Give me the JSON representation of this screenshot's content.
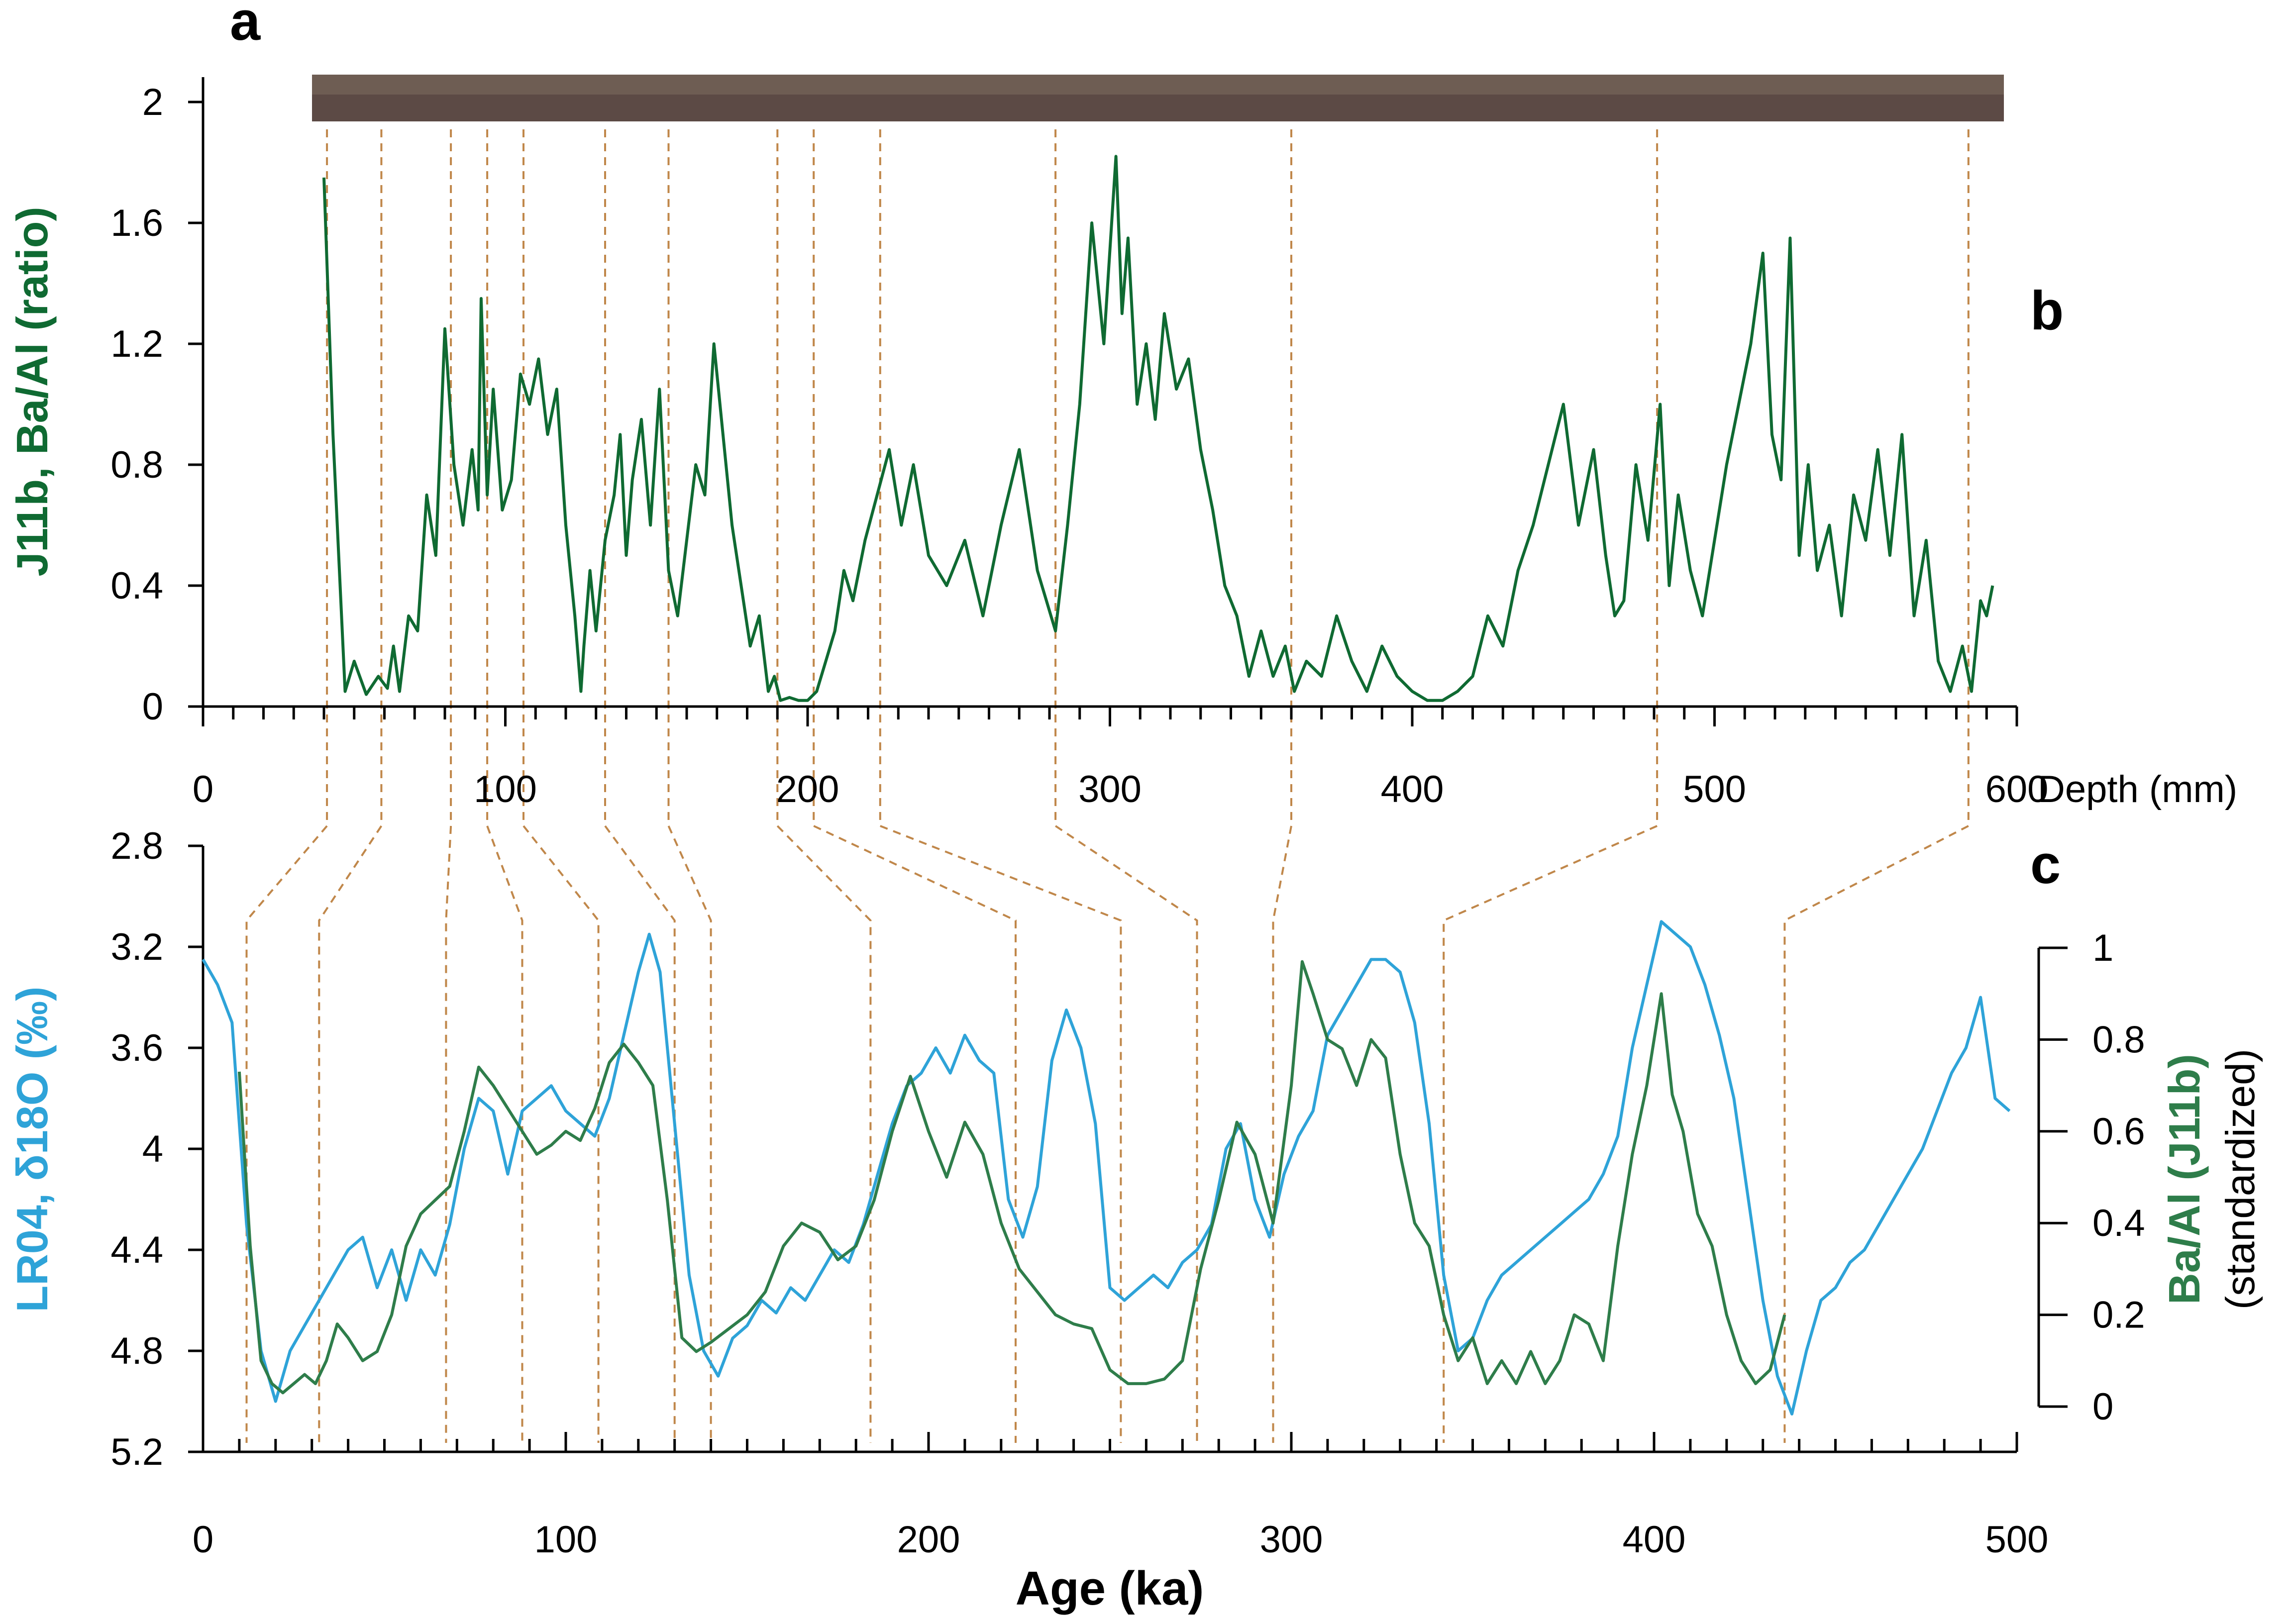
{
  "panel_labels": {
    "a": "a",
    "b": "b",
    "c": "c"
  },
  "colors": {
    "ba": "#0f6a32",
    "ba_c": "#2e7d4a",
    "lr04": "#2ea3d8",
    "tie": "#c0874a",
    "core_strip": "#5c4a45"
  },
  "chart_data": [
    {
      "id": "panel-b",
      "type": "line",
      "title": "",
      "xlabel": "Depth (mm)",
      "ylabel": "J11b, Ba/Al (ratio)",
      "xlim": [
        0,
        600
      ],
      "ylim": [
        0,
        2
      ],
      "xticks": [
        "0",
        "100",
        "200",
        "300",
        "400",
        "500",
        "600"
      ],
      "yticks": [
        "0",
        "0.4",
        "0.8",
        "1.2",
        "1.6",
        "2"
      ],
      "series": [
        {
          "x": [
            40,
            43,
            47,
            50,
            54,
            58,
            61,
            63,
            65,
            68,
            71,
            74,
            77,
            80,
            83,
            86,
            89,
            91,
            92,
            94,
            96,
            99,
            102,
            105,
            108,
            111,
            114,
            117,
            120,
            123,
            125,
            126,
            128,
            130,
            133,
            136,
            138,
            140,
            142,
            145,
            148,
            151,
            154,
            157,
            160,
            163,
            166,
            169,
            172,
            175,
            178,
            181,
            184,
            187,
            189,
            191,
            194,
            197,
            200,
            203,
            206,
            209,
            212,
            215,
            219,
            223,
            227,
            231,
            235,
            240,
            246,
            252,
            258,
            264,
            270,
            276,
            282,
            286,
            290,
            294,
            298,
            302,
            304,
            306,
            309,
            312,
            315,
            318,
            322,
            326,
            330,
            334,
            338,
            342,
            346,
            350,
            354,
            358,
            361,
            365,
            370,
            375,
            380,
            385,
            390,
            395,
            400,
            405,
            410,
            415,
            420,
            425,
            430,
            435,
            440,
            445,
            450,
            455,
            460,
            464,
            467,
            470,
            474,
            478,
            482,
            485,
            488,
            492,
            496,
            500,
            504,
            508,
            512,
            516,
            519,
            522,
            525,
            528,
            531,
            534,
            538,
            542,
            546,
            550,
            554,
            558,
            562,
            566,
            570,
            574,
            578,
            582,
            585,
            588,
            590,
            592
          ],
          "y": [
            1.75,
            0.9,
            0.05,
            0.15,
            0.04,
            0.1,
            0.06,
            0.2,
            0.05,
            0.3,
            0.25,
            0.7,
            0.5,
            1.25,
            0.8,
            0.6,
            0.85,
            0.65,
            1.35,
            0.7,
            1.05,
            0.65,
            0.75,
            1.1,
            1.0,
            1.15,
            0.9,
            1.05,
            0.6,
            0.3,
            0.05,
            0.2,
            0.45,
            0.25,
            0.55,
            0.7,
            0.9,
            0.5,
            0.75,
            0.95,
            0.6,
            1.05,
            0.45,
            0.3,
            0.55,
            0.8,
            0.7,
            1.2,
            0.9,
            0.6,
            0.4,
            0.2,
            0.3,
            0.05,
            0.1,
            0.02,
            0.03,
            0.02,
            0.02,
            0.05,
            0.15,
            0.25,
            0.45,
            0.35,
            0.55,
            0.7,
            0.85,
            0.6,
            0.8,
            0.5,
            0.4,
            0.55,
            0.3,
            0.6,
            0.85,
            0.45,
            0.25,
            0.6,
            1.0,
            1.6,
            1.2,
            1.82,
            1.3,
            1.55,
            1.0,
            1.2,
            0.95,
            1.3,
            1.05,
            1.15,
            0.85,
            0.65,
            0.4,
            0.3,
            0.1,
            0.25,
            0.1,
            0.2,
            0.05,
            0.15,
            0.1,
            0.3,
            0.15,
            0.05,
            0.2,
            0.1,
            0.05,
            0.02,
            0.02,
            0.05,
            0.1,
            0.3,
            0.2,
            0.45,
            0.6,
            0.8,
            1.0,
            0.6,
            0.85,
            0.5,
            0.3,
            0.35,
            0.8,
            0.55,
            1.0,
            0.4,
            0.7,
            0.45,
            0.3,
            0.55,
            0.8,
            1.0,
            1.2,
            1.5,
            0.9,
            0.75,
            1.55,
            0.5,
            0.8,
            0.45,
            0.6,
            0.3,
            0.7,
            0.55,
            0.85,
            0.5,
            0.9,
            0.3,
            0.55,
            0.15,
            0.05,
            0.2,
            0.05,
            0.35,
            0.3,
            0.4
          ]
        }
      ]
    },
    {
      "id": "panel-c",
      "type": "line",
      "title": "",
      "xlabel": "Age (ka)",
      "ylabel": "LR04, δ18O (‰)",
      "y2label": "Ba/Al (J11b)",
      "y2sub": "(standardized)",
      "xlim": [
        0,
        500
      ],
      "ylim": [
        5.2,
        2.8
      ],
      "y2lim": [
        0,
        1
      ],
      "xticks": [
        "0",
        "100",
        "200",
        "300",
        "400",
        "500"
      ],
      "yticks": [
        "2.8",
        "3.2",
        "3.6",
        "4",
        "4.4",
        "4.8",
        "5.2"
      ],
      "y2ticks": [
        "0",
        "0.2",
        "0.4",
        "0.6",
        "0.8",
        "1"
      ],
      "series": [
        {
          "name": "LR04",
          "axis": "left",
          "x": [
            0,
            4,
            8,
            12,
            16,
            20,
            24,
            28,
            32,
            36,
            40,
            44,
            48,
            52,
            56,
            60,
            64,
            68,
            72,
            76,
            80,
            84,
            88,
            92,
            96,
            100,
            104,
            108,
            112,
            116,
            120,
            123,
            126,
            130,
            134,
            138,
            142,
            146,
            150,
            154,
            158,
            162,
            166,
            170,
            174,
            178,
            182,
            186,
            190,
            194,
            198,
            202,
            206,
            210,
            214,
            218,
            222,
            226,
            230,
            234,
            238,
            242,
            246,
            250,
            254,
            258,
            262,
            266,
            270,
            274,
            278,
            282,
            286,
            290,
            294,
            298,
            302,
            306,
            310,
            314,
            318,
            322,
            326,
            330,
            334,
            338,
            342,
            346,
            350,
            354,
            358,
            362,
            366,
            370,
            374,
            378,
            382,
            386,
            390,
            394,
            398,
            402,
            406,
            410,
            414,
            418,
            422,
            426,
            430,
            434,
            438,
            442,
            446,
            450,
            454,
            458,
            462,
            466,
            470,
            474,
            478,
            482,
            486,
            490,
            494,
            498
          ],
          "y": [
            3.25,
            3.35,
            3.5,
            4.3,
            4.8,
            5.0,
            4.8,
            4.7,
            4.6,
            4.5,
            4.4,
            4.35,
            4.55,
            4.4,
            4.6,
            4.4,
            4.5,
            4.3,
            4.0,
            3.8,
            3.85,
            4.1,
            3.85,
            3.8,
            3.75,
            3.85,
            3.9,
            3.95,
            3.8,
            3.55,
            3.3,
            3.15,
            3.3,
            3.9,
            4.5,
            4.8,
            4.9,
            4.75,
            4.7,
            4.6,
            4.65,
            4.55,
            4.6,
            4.5,
            4.4,
            4.45,
            4.3,
            4.1,
            3.9,
            3.75,
            3.7,
            3.6,
            3.7,
            3.55,
            3.65,
            3.7,
            4.2,
            4.35,
            4.15,
            3.65,
            3.45,
            3.6,
            3.9,
            4.55,
            4.6,
            4.55,
            4.5,
            4.55,
            4.45,
            4.4,
            4.3,
            4.0,
            3.9,
            4.2,
            4.35,
            4.1,
            3.95,
            3.85,
            3.55,
            3.45,
            3.35,
            3.25,
            3.25,
            3.3,
            3.5,
            3.9,
            4.5,
            4.8,
            4.75,
            4.6,
            4.5,
            4.45,
            4.4,
            4.35,
            4.3,
            4.25,
            4.2,
            4.1,
            3.95,
            3.6,
            3.35,
            3.1,
            3.15,
            3.2,
            3.35,
            3.55,
            3.8,
            4.2,
            4.6,
            4.9,
            5.05,
            4.8,
            4.6,
            4.55,
            4.45,
            4.4,
            4.3,
            4.2,
            4.1,
            4.0,
            3.85,
            3.7,
            3.6,
            3.4,
            3.8,
            3.85
          ]
        },
        {
          "name": "Ba/Al (J11b)",
          "axis": "right",
          "x": [
            10,
            13,
            16,
            19,
            22,
            25,
            28,
            31,
            34,
            37,
            40,
            44,
            48,
            52,
            56,
            60,
            64,
            68,
            72,
            76,
            80,
            84,
            88,
            92,
            96,
            100,
            104,
            108,
            112,
            116,
            120,
            124,
            128,
            132,
            136,
            140,
            145,
            150,
            155,
            160,
            165,
            170,
            175,
            180,
            185,
            190,
            195,
            200,
            205,
            210,
            215,
            220,
            225,
            230,
            235,
            240,
            245,
            250,
            255,
            260,
            265,
            270,
            275,
            280,
            285,
            290,
            295,
            300,
            303,
            306,
            310,
            314,
            318,
            322,
            326,
            330,
            334,
            338,
            342,
            346,
            350,
            354,
            358,
            362,
            366,
            370,
            374,
            378,
            382,
            386,
            390,
            394,
            398,
            402,
            405,
            408,
            412,
            416,
            420,
            424,
            428,
            432,
            436
          ],
          "y": [
            0.73,
            0.35,
            0.1,
            0.05,
            0.03,
            0.05,
            0.07,
            0.05,
            0.1,
            0.18,
            0.15,
            0.1,
            0.12,
            0.2,
            0.35,
            0.42,
            0.45,
            0.48,
            0.6,
            0.74,
            0.7,
            0.65,
            0.6,
            0.55,
            0.57,
            0.6,
            0.58,
            0.65,
            0.75,
            0.79,
            0.75,
            0.7,
            0.45,
            0.15,
            0.12,
            0.14,
            0.17,
            0.2,
            0.25,
            0.35,
            0.4,
            0.38,
            0.32,
            0.35,
            0.45,
            0.6,
            0.72,
            0.6,
            0.5,
            0.62,
            0.55,
            0.4,
            0.3,
            0.25,
            0.2,
            0.18,
            0.17,
            0.08,
            0.05,
            0.05,
            0.06,
            0.1,
            0.3,
            0.45,
            0.62,
            0.55,
            0.4,
            0.7,
            0.97,
            0.9,
            0.8,
            0.78,
            0.7,
            0.8,
            0.76,
            0.55,
            0.4,
            0.35,
            0.2,
            0.1,
            0.15,
            0.05,
            0.1,
            0.05,
            0.12,
            0.05,
            0.1,
            0.2,
            0.18,
            0.1,
            0.35,
            0.55,
            0.7,
            0.9,
            0.68,
            0.6,
            0.42,
            0.35,
            0.2,
            0.1,
            0.05,
            0.08,
            0.2
          ]
        }
      ]
    }
  ],
  "tie_lines": [
    {
      "depth": 41,
      "age": 12
    },
    {
      "depth": 59,
      "age": 32
    },
    {
      "depth": 82,
      "age": 67
    },
    {
      "depth": 94,
      "age": 88
    },
    {
      "depth": 106,
      "age": 109
    },
    {
      "depth": 133,
      "age": 130
    },
    {
      "depth": 154,
      "age": 140
    },
    {
      "depth": 190,
      "age": 184
    },
    {
      "depth": 202,
      "age": 224
    },
    {
      "depth": 224,
      "age": 253
    },
    {
      "depth": 282,
      "age": 274
    },
    {
      "depth": 360,
      "age": 295
    },
    {
      "depth": 481,
      "age": 342
    },
    {
      "depth": 584,
      "age": 436
    }
  ]
}
